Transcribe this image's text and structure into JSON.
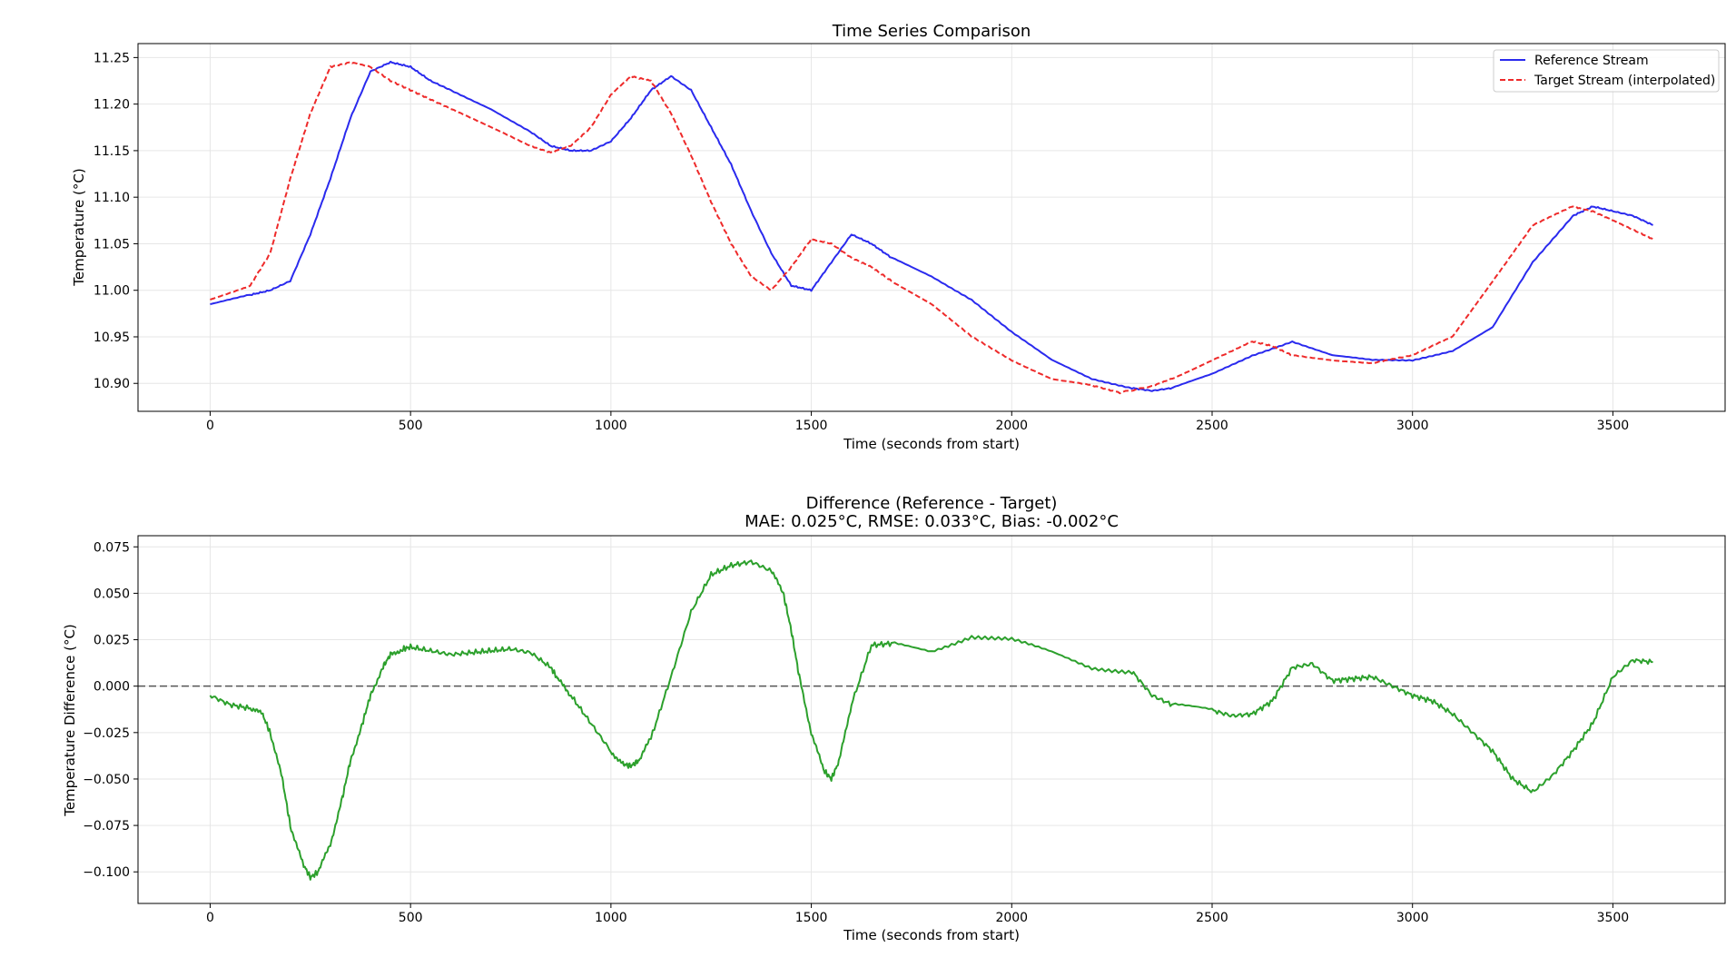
{
  "colors": {
    "reference": "#2a2aee",
    "target": "#ee2a2a",
    "difference": "#2ca02c",
    "zero_line": "#555555"
  },
  "chart_data": [
    {
      "type": "line",
      "title": "Time Series Comparison",
      "xlabel": "Time (seconds from start)",
      "ylabel": "Temperature (°C)",
      "xlim": [
        -180,
        3780
      ],
      "ylim": [
        10.87,
        11.265
      ],
      "xticks": [
        0,
        500,
        1000,
        1500,
        2000,
        2500,
        3000,
        3500
      ],
      "xtick_labels": [
        "0",
        "500",
        "1000",
        "1500",
        "2000",
        "2500",
        "3000",
        "3500"
      ],
      "yticks": [
        10.9,
        10.95,
        11.0,
        11.05,
        11.1,
        11.15,
        11.2,
        11.25
      ],
      "ytick_labels": [
        "10.90",
        "10.95",
        "11.00",
        "11.05",
        "11.10",
        "11.15",
        "11.20",
        "11.25"
      ],
      "grid": true,
      "legend": "top-right",
      "series": [
        {
          "name": "Reference Stream",
          "style": "solid",
          "color_key": "reference",
          "x": [
            0,
            100,
            150,
            200,
            250,
            300,
            350,
            400,
            450,
            500,
            550,
            600,
            700,
            800,
            850,
            900,
            950,
            1000,
            1050,
            1100,
            1150,
            1200,
            1250,
            1300,
            1350,
            1400,
            1450,
            1500,
            1550,
            1600,
            1650,
            1700,
            1800,
            1900,
            2000,
            2100,
            2200,
            2300,
            2350,
            2400,
            2500,
            2600,
            2700,
            2800,
            2900,
            3000,
            3100,
            3200,
            3300,
            3400,
            3450,
            3500,
            3550,
            3600
          ],
          "y": [
            10.985,
            10.995,
            11.0,
            11.01,
            11.06,
            11.12,
            11.185,
            11.235,
            11.245,
            11.24,
            11.225,
            11.215,
            11.195,
            11.17,
            11.155,
            11.15,
            11.15,
            11.16,
            11.185,
            11.215,
            11.23,
            11.215,
            11.175,
            11.135,
            11.085,
            11.04,
            11.005,
            11.0,
            11.03,
            11.06,
            11.05,
            11.035,
            11.015,
            10.99,
            10.955,
            10.925,
            10.905,
            10.895,
            10.892,
            10.895,
            10.91,
            10.93,
            10.945,
            10.93,
            10.925,
            10.925,
            10.935,
            10.96,
            11.03,
            11.08,
            11.09,
            11.085,
            11.08,
            11.07
          ]
        },
        {
          "name": "Target Stream (interpolated)",
          "style": "dashed",
          "color_key": "target",
          "x": [
            0,
            100,
            150,
            200,
            250,
            300,
            350,
            400,
            450,
            500,
            550,
            600,
            700,
            800,
            850,
            900,
            950,
            1000,
            1050,
            1100,
            1150,
            1200,
            1250,
            1300,
            1350,
            1400,
            1450,
            1500,
            1550,
            1600,
            1650,
            1700,
            1800,
            1900,
            2000,
            2100,
            2200,
            2270,
            2350,
            2400,
            2500,
            2600,
            2650,
            2700,
            2800,
            2900,
            3000,
            3100,
            3200,
            3300,
            3400,
            3450,
            3500,
            3550,
            3600
          ],
          "y": [
            10.99,
            11.005,
            11.04,
            11.12,
            11.19,
            11.24,
            11.245,
            11.24,
            11.225,
            11.215,
            11.205,
            11.195,
            11.175,
            11.155,
            11.148,
            11.155,
            11.175,
            11.21,
            11.23,
            11.225,
            11.19,
            11.145,
            11.095,
            11.05,
            11.015,
            11.0,
            11.025,
            11.055,
            11.05,
            11.035,
            11.025,
            11.01,
            10.985,
            10.95,
            10.925,
            10.905,
            10.898,
            10.89,
            10.897,
            10.905,
            10.925,
            10.945,
            10.94,
            10.93,
            10.925,
            10.922,
            10.93,
            10.95,
            11.01,
            11.07,
            11.09,
            11.085,
            11.075,
            11.065,
            11.055
          ]
        }
      ]
    },
    {
      "type": "line",
      "title": "Difference (Reference - Target)",
      "subtitle": "MAE: 0.025°C, RMSE: 0.033°C, Bias: -0.002°C",
      "xlabel": "Time (seconds from start)",
      "ylabel": "Temperature Difference (°C)",
      "xlim": [
        -180,
        3780
      ],
      "ylim": [
        -0.117,
        0.081
      ],
      "xticks": [
        0,
        500,
        1000,
        1500,
        2000,
        2500,
        3000,
        3500
      ],
      "xtick_labels": [
        "0",
        "500",
        "1000",
        "1500",
        "2000",
        "2500",
        "3000",
        "3500"
      ],
      "yticks": [
        -0.1,
        -0.075,
        -0.05,
        -0.025,
        0.0,
        0.025,
        0.05,
        0.075
      ],
      "ytick_labels": [
        "−0.100",
        "−0.075",
        "−0.050",
        "−0.025",
        "0.000",
        "0.025",
        "0.050",
        "0.075"
      ],
      "grid": true,
      "reference_line": 0,
      "series": [
        {
          "color_key": "difference",
          "style": "solid",
          "x": [
            0,
            50,
            100,
            130,
            150,
            180,
            200,
            230,
            250,
            270,
            300,
            330,
            350,
            380,
            400,
            430,
            450,
            480,
            500,
            550,
            600,
            650,
            700,
            750,
            800,
            850,
            870,
            900,
            950,
            1000,
            1030,
            1050,
            1070,
            1100,
            1150,
            1200,
            1250,
            1300,
            1350,
            1400,
            1430,
            1450,
            1470,
            1500,
            1530,
            1550,
            1570,
            1600,
            1650,
            1700,
            1800,
            1900,
            2000,
            2100,
            2200,
            2300,
            2350,
            2400,
            2500,
            2550,
            2600,
            2650,
            2700,
            2750,
            2800,
            2850,
            2900,
            2950,
            3000,
            3050,
            3100,
            3150,
            3200,
            3250,
            3300,
            3350,
            3400,
            3450,
            3500,
            3550,
            3600
          ],
          "y": [
            -0.005,
            -0.01,
            -0.012,
            -0.015,
            -0.025,
            -0.05,
            -0.075,
            -0.095,
            -0.103,
            -0.1,
            -0.085,
            -0.06,
            -0.04,
            -0.02,
            -0.005,
            0.01,
            0.017,
            0.02,
            0.021,
            0.019,
            0.017,
            0.018,
            0.019,
            0.02,
            0.018,
            0.01,
            0.003,
            -0.005,
            -0.02,
            -0.035,
            -0.042,
            -0.043,
            -0.04,
            -0.028,
            0.005,
            0.04,
            0.06,
            0.065,
            0.067,
            0.062,
            0.05,
            0.03,
            0.005,
            -0.025,
            -0.045,
            -0.05,
            -0.04,
            -0.01,
            0.022,
            0.023,
            0.019,
            0.027,
            0.025,
            0.018,
            0.01,
            0.008,
            -0.005,
            -0.01,
            -0.013,
            -0.016,
            -0.015,
            -0.008,
            0.01,
            0.012,
            0.003,
            0.004,
            0.005,
            0.0,
            -0.005,
            -0.008,
            -0.015,
            -0.025,
            -0.035,
            -0.05,
            -0.057,
            -0.048,
            -0.035,
            -0.02,
            0.005,
            0.014,
            0.013
          ]
        }
      ]
    }
  ]
}
